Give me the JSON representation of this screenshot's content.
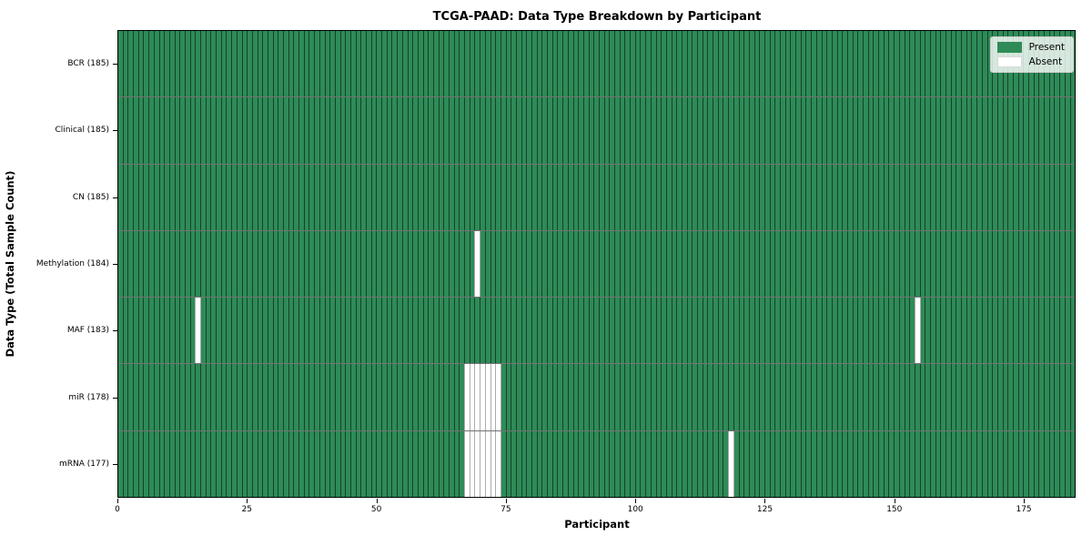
{
  "chart_data": {
    "type": "heatmap",
    "title": "TCGA-PAAD: Data Type Breakdown by Participant",
    "xlabel": "Participant",
    "ylabel": "Data Type (Total Sample Count)",
    "x_ticks": [
      0,
      25,
      50,
      75,
      100,
      125,
      150,
      175
    ],
    "xlim": [
      0,
      185
    ],
    "n_participants": 185,
    "grid": false,
    "colors": {
      "present": "#2e8b57",
      "absent": "#ffffff"
    },
    "legend": {
      "position": "upper right",
      "entries": [
        {
          "label": "Present",
          "color": "#2e8b57"
        },
        {
          "label": "Absent",
          "color": "#ffffff"
        }
      ]
    },
    "rows": [
      {
        "label": "BCR (185)",
        "data_type": "BCR",
        "present_count": 185,
        "absent_participants": []
      },
      {
        "label": "Clinical (185)",
        "data_type": "Clinical",
        "present_count": 185,
        "absent_participants": []
      },
      {
        "label": "CN (185)",
        "data_type": "CN",
        "present_count": 185,
        "absent_participants": []
      },
      {
        "label": "Methylation (184)",
        "data_type": "Methylation",
        "present_count": 184,
        "absent_participants": [
          69
        ]
      },
      {
        "label": "MAF (183)",
        "data_type": "MAF",
        "present_count": 183,
        "absent_participants": [
          15,
          154
        ]
      },
      {
        "label": "miR (178)",
        "data_type": "miR",
        "present_count": 178,
        "absent_participants": [
          67,
          68,
          69,
          70,
          71,
          72,
          73
        ]
      },
      {
        "label": "mRNA (177)",
        "data_type": "mRNA",
        "present_count": 177,
        "absent_participants": [
          67,
          68,
          69,
          70,
          71,
          72,
          73,
          118
        ]
      }
    ]
  }
}
